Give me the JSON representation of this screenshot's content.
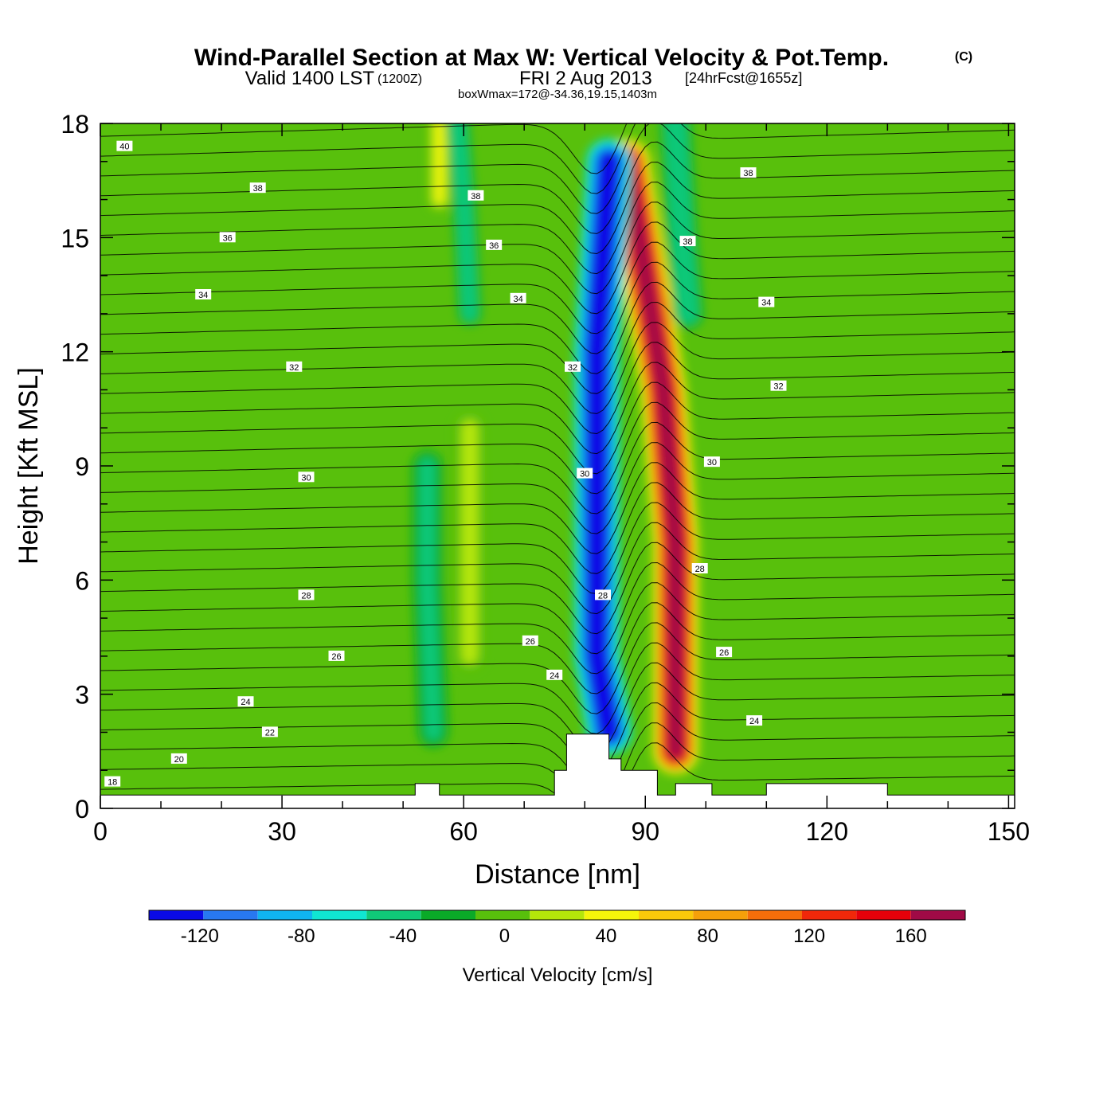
{
  "titles": {
    "main": "Wind-Parallel Section at Max W: Vertical Velocity & Pot.Temp.",
    "copyright": "(C)",
    "valid_prefix": "Valid 1400 LST",
    "valid_zulu": "(1200Z)",
    "valid_date": "FRI 2 Aug 2013",
    "forecast": "[24hrFcst@1655z]",
    "boxwmax": "boxWmax=172@-34.36,19.15,1403m"
  },
  "colors": {
    "background": "#58c00c",
    "colorbar": [
      "#0a0ae6",
      "#2878f0",
      "#10b4f0",
      "#10e6d2",
      "#10c878",
      "#0aaa28",
      "#58c00c",
      "#b4e60a",
      "#f5f50a",
      "#fac80a",
      "#f5a00a",
      "#f56e0a",
      "#f0280a",
      "#e6000a",
      "#a00a46"
    ]
  },
  "chart_data": {
    "type": "heatmap",
    "title": "Wind-Parallel Section at Max W: Vertical Velocity & Pot.Temp.",
    "xlabel": "Distance [nm]",
    "ylabel": "Height [Kft MSL]",
    "xlim": [
      0,
      151
    ],
    "ylim": [
      0,
      18
    ],
    "xticks": [
      0,
      30,
      60,
      90,
      120,
      150
    ],
    "yticks": [
      0,
      3,
      6,
      9,
      12,
      15,
      18
    ],
    "colorbar": {
      "label": "Vertical Velocity [cm/s]",
      "levels": [
        -140,
        -120,
        -100,
        -80,
        -60,
        -40,
        -20,
        0,
        20,
        40,
        60,
        80,
        100,
        120,
        140,
        160,
        180
      ],
      "tick_values": [
        -120,
        -80,
        -40,
        0,
        40,
        80,
        120,
        160
      ],
      "tick_labels": [
        "-120",
        "-80",
        "-40",
        "0",
        "40",
        "80",
        "120",
        "160"
      ]
    },
    "w_features": [
      {
        "name": "updraft-core",
        "points": [
          [
            87,
            17
          ],
          [
            93,
            11
          ],
          [
            95,
            7
          ],
          [
            95,
            4
          ],
          [
            95,
            1.5
          ]
        ],
        "width": 6,
        "value": 170
      },
      {
        "name": "downdraft-core",
        "points": [
          [
            84,
            17
          ],
          [
            82,
            12
          ],
          [
            82,
            8
          ],
          [
            82,
            4
          ],
          [
            84,
            2
          ]
        ],
        "width": 6,
        "value": -120
      },
      {
        "name": "upper-updraft",
        "points": [
          [
            56,
            18
          ],
          [
            56,
            16
          ]
        ],
        "width": 3,
        "value": 40
      },
      {
        "name": "mid-updraft",
        "points": [
          [
            61,
            10
          ],
          [
            61,
            7
          ],
          [
            61,
            4
          ]
        ],
        "width": 4,
        "value": 30
      },
      {
        "name": "upper-downdraft",
        "points": [
          [
            59,
            18
          ],
          [
            60,
            16
          ],
          [
            61,
            13
          ]
        ],
        "width": 3,
        "value": -40
      },
      {
        "name": "left-downdraft",
        "points": [
          [
            54,
            9
          ],
          [
            54,
            6
          ],
          [
            55,
            2
          ]
        ],
        "width": 4,
        "value": -30
      },
      {
        "name": "right-upper-downdraft",
        "points": [
          [
            95,
            18
          ],
          [
            96,
            15
          ],
          [
            97,
            13
          ]
        ],
        "width": 4,
        "value": -40
      }
    ],
    "isentropes": {
      "label_values": [
        18,
        20,
        22,
        24,
        26,
        28,
        30,
        32,
        34,
        36,
        38,
        40
      ],
      "labels": [
        {
          "text": "40",
          "x": 4,
          "y": 17.4
        },
        {
          "text": "38",
          "x": 26,
          "y": 16.3
        },
        {
          "text": "38",
          "x": 62,
          "y": 16.1
        },
        {
          "text": "38",
          "x": 107,
          "y": 16.7
        },
        {
          "text": "36",
          "x": 21,
          "y": 15.0
        },
        {
          "text": "36",
          "x": 65,
          "y": 14.8
        },
        {
          "text": "38",
          "x": 97,
          "y": 14.9
        },
        {
          "text": "34",
          "x": 17,
          "y": 13.5
        },
        {
          "text": "34",
          "x": 69,
          "y": 13.4
        },
        {
          "text": "34",
          "x": 110,
          "y": 13.3
        },
        {
          "text": "32",
          "x": 32,
          "y": 11.6
        },
        {
          "text": "32",
          "x": 78,
          "y": 11.6
        },
        {
          "text": "32",
          "x": 112,
          "y": 11.1
        },
        {
          "text": "30",
          "x": 34,
          "y": 8.7
        },
        {
          "text": "30",
          "x": 80,
          "y": 8.8
        },
        {
          "text": "30",
          "x": 101,
          "y": 9.1
        },
        {
          "text": "28",
          "x": 34,
          "y": 5.6
        },
        {
          "text": "28",
          "x": 83,
          "y": 5.6
        },
        {
          "text": "28",
          "x": 99,
          "y": 6.3
        },
        {
          "text": "26",
          "x": 39,
          "y": 4.0
        },
        {
          "text": "26",
          "x": 71,
          "y": 4.4
        },
        {
          "text": "26",
          "x": 103,
          "y": 4.1
        },
        {
          "text": "24",
          "x": 24,
          "y": 2.8
        },
        {
          "text": "24",
          "x": 75,
          "y": 3.5
        },
        {
          "text": "24",
          "x": 108,
          "y": 2.3
        },
        {
          "text": "22",
          "x": 28,
          "y": 2.0
        },
        {
          "text": "20",
          "x": 13,
          "y": 1.3
        },
        {
          "text": "18",
          "x": 2,
          "y": 0.7
        }
      ]
    },
    "terrain": {
      "base_height": 0.35,
      "profile": [
        [
          52,
          0.35
        ],
        [
          52,
          0.65
        ],
        [
          56,
          0.65
        ],
        [
          56,
          0.35
        ],
        [
          75,
          0.35
        ],
        [
          75,
          1.0
        ],
        [
          77,
          1.0
        ],
        [
          77,
          1.95
        ],
        [
          84,
          1.95
        ],
        [
          84,
          1.3
        ],
        [
          86,
          1.3
        ],
        [
          86,
          1.0
        ],
        [
          92,
          1.0
        ],
        [
          92,
          0.35
        ],
        [
          95,
          0.35
        ],
        [
          95,
          0.65
        ],
        [
          101,
          0.65
        ],
        [
          101,
          0.35
        ],
        [
          110,
          0.35
        ],
        [
          110,
          0.65
        ],
        [
          130,
          0.65
        ],
        [
          130,
          0.35
        ],
        [
          150,
          0.35
        ]
      ]
    }
  }
}
